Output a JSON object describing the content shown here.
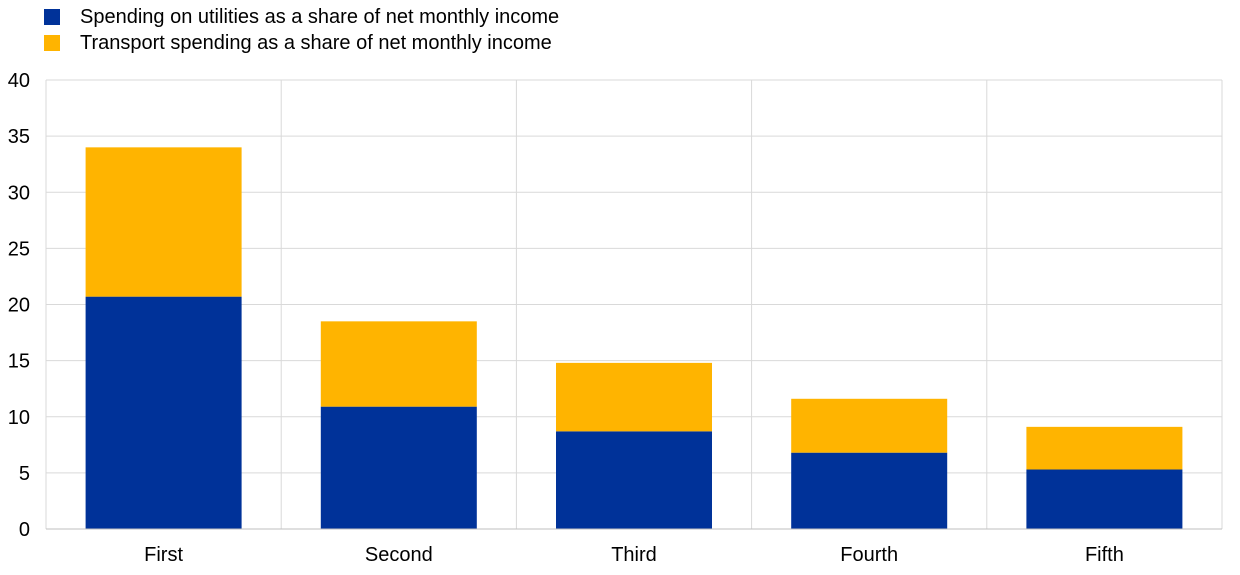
{
  "chart_data": {
    "type": "bar",
    "stacked": true,
    "categories": [
      "First",
      "Second",
      "Third",
      "Fourth",
      "Fifth"
    ],
    "series": [
      {
        "name": "Spending on utilities as a share of net monthly income",
        "color": "#003299",
        "values": [
          20.7,
          10.9,
          8.7,
          6.8,
          5.3
        ]
      },
      {
        "name": "Transport spending as a share of net monthly income",
        "color": "#FFB400",
        "values": [
          13.3,
          7.6,
          6.1,
          4.8,
          3.8
        ]
      }
    ],
    "ylim": [
      0,
      40
    ],
    "yticks": [
      0,
      5,
      10,
      15,
      20,
      25,
      30,
      35,
      40
    ],
    "grid": true,
    "legend_position": "top-left"
  }
}
